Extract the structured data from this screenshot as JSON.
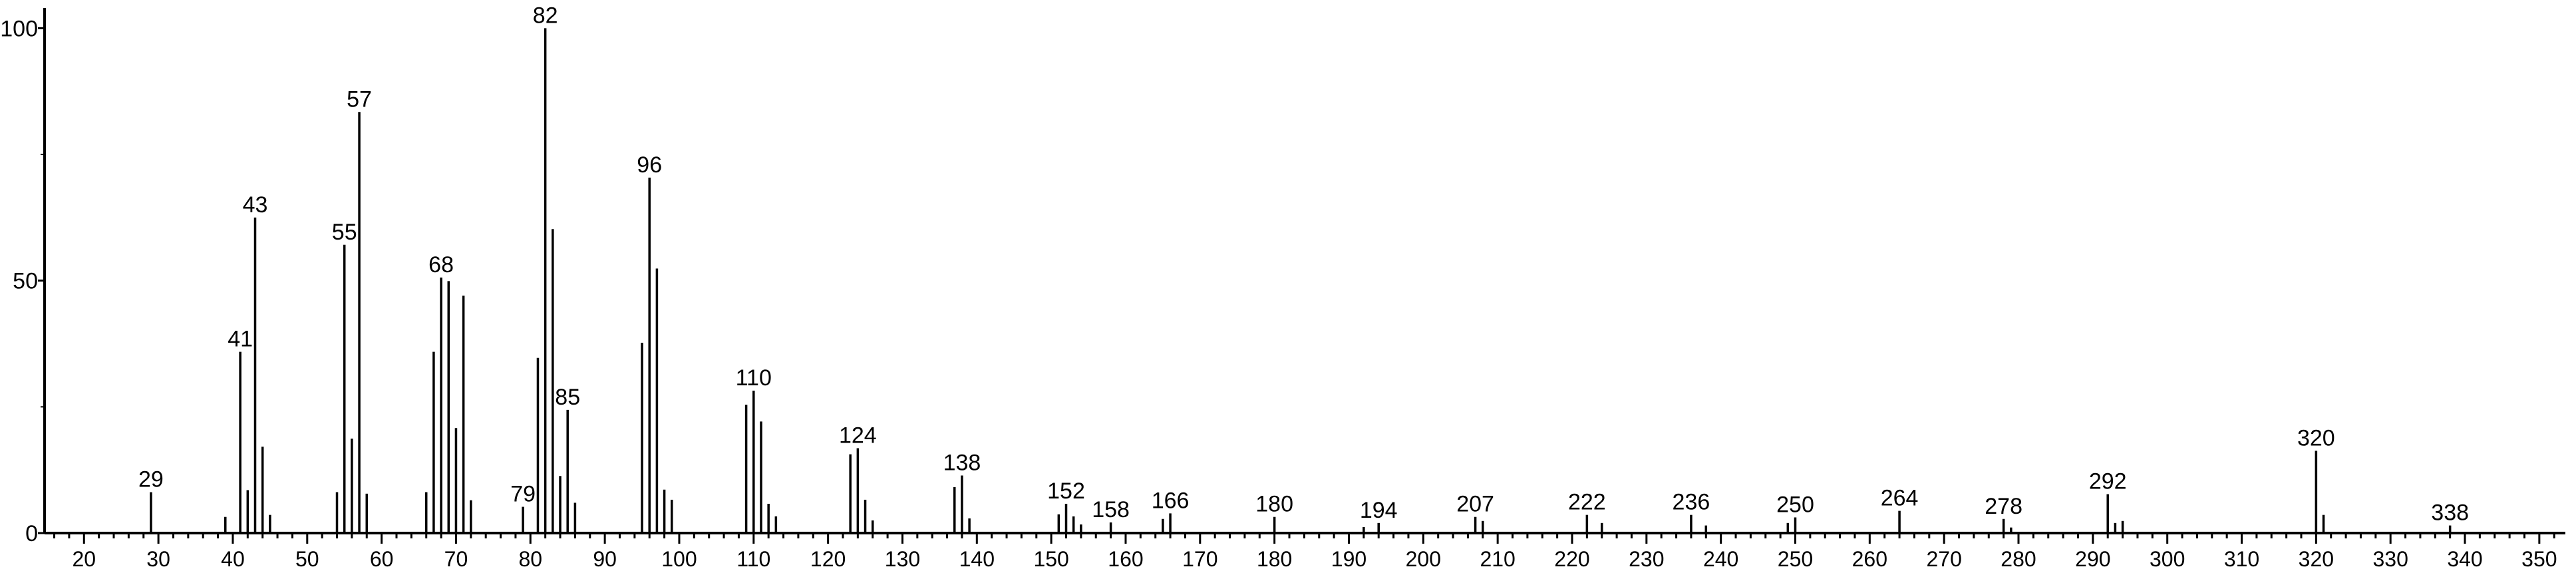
{
  "chart_data": {
    "type": "bar",
    "title": "",
    "xlabel": "",
    "ylabel": "",
    "xlim": [
      14.7,
      353.5
    ],
    "ylim": [
      0,
      104
    ],
    "grid": false,
    "x_ticks": [
      20,
      30,
      40,
      50,
      60,
      70,
      80,
      90,
      100,
      110,
      120,
      130,
      140,
      150,
      160,
      170,
      180,
      190,
      200,
      210,
      220,
      230,
      240,
      250,
      260,
      270,
      280,
      290,
      300,
      310,
      320,
      330,
      340,
      350
    ],
    "y_ticks": [
      0,
      50,
      100
    ],
    "y_minor_ticks": [
      25,
      75
    ],
    "x_minor_tick_step": 2,
    "bar_color": "#000000",
    "peaks": [
      {
        "mz": 29,
        "intensity": 8.1,
        "label": "29"
      },
      {
        "mz": 39,
        "intensity": 3.2
      },
      {
        "mz": 41,
        "intensity": 35.9,
        "label": "41"
      },
      {
        "mz": 42,
        "intensity": 8.5
      },
      {
        "mz": 43,
        "intensity": 62.5,
        "label": "43"
      },
      {
        "mz": 44,
        "intensity": 17.1
      },
      {
        "mz": 45,
        "intensity": 3.6
      },
      {
        "mz": 54,
        "intensity": 8.1
      },
      {
        "mz": 55,
        "intensity": 57.1,
        "label": "55"
      },
      {
        "mz": 56,
        "intensity": 18.7
      },
      {
        "mz": 57,
        "intensity": 83.4,
        "label": "57"
      },
      {
        "mz": 58,
        "intensity": 7.8
      },
      {
        "mz": 66,
        "intensity": 8.1
      },
      {
        "mz": 67,
        "intensity": 35.9
      },
      {
        "mz": 68,
        "intensity": 50.6,
        "label": "68"
      },
      {
        "mz": 69,
        "intensity": 49.9
      },
      {
        "mz": 70,
        "intensity": 20.8
      },
      {
        "mz": 71,
        "intensity": 47.0
      },
      {
        "mz": 72,
        "intensity": 6.5
      },
      {
        "mz": 79,
        "intensity": 5.2,
        "label": "79"
      },
      {
        "mz": 81,
        "intensity": 34.7
      },
      {
        "mz": 82,
        "intensity": 100,
        "label": "82"
      },
      {
        "mz": 83,
        "intensity": 60.2
      },
      {
        "mz": 84,
        "intensity": 11.3
      },
      {
        "mz": 85,
        "intensity": 24.4,
        "label": "85"
      },
      {
        "mz": 86,
        "intensity": 6.0
      },
      {
        "mz": 95,
        "intensity": 37.7
      },
      {
        "mz": 96,
        "intensity": 70.4,
        "label": "96"
      },
      {
        "mz": 97,
        "intensity": 52.4
      },
      {
        "mz": 98,
        "intensity": 8.6
      },
      {
        "mz": 99,
        "intensity": 6.6
      },
      {
        "mz": 109,
        "intensity": 25.4
      },
      {
        "mz": 110,
        "intensity": 28.2,
        "label": "110"
      },
      {
        "mz": 111,
        "intensity": 22.1
      },
      {
        "mz": 112,
        "intensity": 5.8
      },
      {
        "mz": 113,
        "intensity": 3.3
      },
      {
        "mz": 123,
        "intensity": 15.6
      },
      {
        "mz": 124,
        "intensity": 16.8,
        "label": "124"
      },
      {
        "mz": 125,
        "intensity": 6.6
      },
      {
        "mz": 126,
        "intensity": 2.5
      },
      {
        "mz": 137,
        "intensity": 9.1
      },
      {
        "mz": 138,
        "intensity": 11.4,
        "label": "138"
      },
      {
        "mz": 139,
        "intensity": 2.9
      },
      {
        "mz": 151,
        "intensity": 3.7
      },
      {
        "mz": 152,
        "intensity": 5.8,
        "label": "152"
      },
      {
        "mz": 153,
        "intensity": 3.3
      },
      {
        "mz": 154,
        "intensity": 1.7
      },
      {
        "mz": 158,
        "intensity": 2.1,
        "label": "158"
      },
      {
        "mz": 165,
        "intensity": 2.8
      },
      {
        "mz": 166,
        "intensity": 3.9,
        "label": "166"
      },
      {
        "mz": 180,
        "intensity": 3.2,
        "label": "180"
      },
      {
        "mz": 192,
        "intensity": 1.2
      },
      {
        "mz": 194,
        "intensity": 2.0,
        "label": "194"
      },
      {
        "mz": 207,
        "intensity": 3.2,
        "label": "207"
      },
      {
        "mz": 208,
        "intensity": 2.4
      },
      {
        "mz": 222,
        "intensity": 3.6,
        "label": "222"
      },
      {
        "mz": 224,
        "intensity": 2.0
      },
      {
        "mz": 236,
        "intensity": 3.6,
        "label": "236"
      },
      {
        "mz": 238,
        "intensity": 1.5
      },
      {
        "mz": 249,
        "intensity": 2.0
      },
      {
        "mz": 250,
        "intensity": 3.1,
        "label": "250"
      },
      {
        "mz": 264,
        "intensity": 4.4,
        "label": "264"
      },
      {
        "mz": 278,
        "intensity": 2.8,
        "label": "278"
      },
      {
        "mz": 279,
        "intensity": 1.1
      },
      {
        "mz": 292,
        "intensity": 7.7,
        "label": "292"
      },
      {
        "mz": 293,
        "intensity": 2.0
      },
      {
        "mz": 294,
        "intensity": 2.4
      },
      {
        "mz": 320,
        "intensity": 16.3,
        "label": "320"
      },
      {
        "mz": 321,
        "intensity": 3.6
      },
      {
        "mz": 338,
        "intensity": 1.5,
        "label": "338"
      }
    ]
  }
}
